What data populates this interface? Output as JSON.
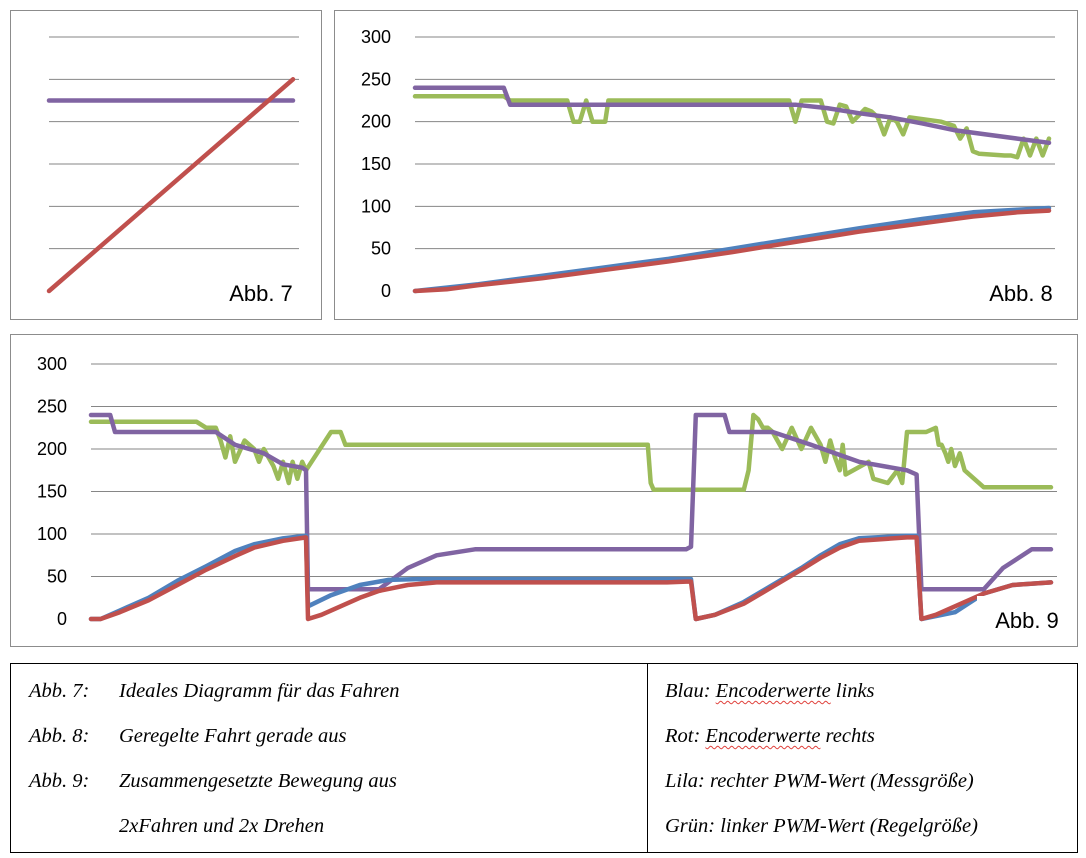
{
  "chart_data": [
    {
      "type": "line",
      "label": "Abb. 7",
      "ylim": [
        0,
        300
      ],
      "grid": true,
      "yticks_visible": false,
      "series": [
        {
          "color": "#8064a2",
          "x": [
            0,
            100
          ],
          "y": [
            225,
            225
          ]
        },
        {
          "color": "#c0504d",
          "x": [
            0,
            100
          ],
          "y": [
            0,
            250
          ]
        }
      ]
    },
    {
      "type": "line",
      "label": "Abb. 8",
      "ylim": [
        0,
        300
      ],
      "yticks": [
        "300",
        "250",
        "200",
        "150",
        "100",
        "50",
        "0"
      ],
      "grid": true,
      "series": [
        {
          "color": "#9bbb59",
          "x": [
            0,
            14,
            15,
            24,
            25,
            26,
            27,
            28,
            29,
            30,
            30.5,
            31,
            34,
            35,
            58,
            59,
            60,
            61,
            63,
            64,
            65,
            66,
            67,
            68,
            69,
            71,
            72,
            73,
            74,
            75,
            76,
            77,
            78,
            83,
            85,
            86,
            87,
            88,
            89,
            93,
            94,
            95,
            96,
            97,
            98,
            99,
            100
          ],
          "y": [
            230,
            230,
            225,
            225,
            200,
            200,
            225,
            200,
            200,
            200,
            225,
            225,
            225,
            225,
            225,
            225,
            200,
            225,
            225,
            225,
            200,
            198,
            220,
            218,
            200,
            215,
            212,
            205,
            185,
            205,
            200,
            185,
            205,
            200,
            195,
            180,
            192,
            165,
            162,
            160,
            160,
            158,
            180,
            160,
            180,
            160,
            180
          ]
        },
        {
          "color": "#8064a2",
          "x": [
            0,
            14,
            15,
            40,
            50,
            60,
            65,
            70,
            75,
            80,
            85,
            90,
            95,
            100
          ],
          "y": [
            240,
            240,
            220,
            220,
            220,
            220,
            216,
            210,
            205,
            198,
            190,
            185,
            180,
            175
          ]
        },
        {
          "color": "#4f81bd",
          "x": [
            0,
            10,
            20,
            30,
            40,
            50,
            60,
            70,
            80,
            88,
            95,
            100
          ],
          "y": [
            0,
            8,
            18,
            28,
            38,
            50,
            62,
            74,
            85,
            93,
            96,
            98
          ]
        },
        {
          "color": "#c0504d",
          "x": [
            0,
            5,
            10,
            20,
            30,
            40,
            50,
            60,
            70,
            80,
            88,
            95,
            100
          ],
          "y": [
            0,
            2,
            7,
            15,
            25,
            35,
            46,
            58,
            70,
            80,
            88,
            93,
            95
          ]
        }
      ]
    },
    {
      "type": "line",
      "label": "Abb. 9",
      "ylim": [
        0,
        300
      ],
      "yticks": [
        "300",
        "250",
        "200",
        "150",
        "100",
        "50",
        "0"
      ],
      "grid": true,
      "series": [
        {
          "color": "#9bbb59",
          "x": [
            0,
            11,
            12,
            13,
            13.5,
            14,
            14.5,
            15,
            16,
            17,
            17.5,
            18,
            18.5,
            19,
            19.5,
            20,
            20.6,
            21,
            21.5,
            22,
            22.4,
            25,
            26,
            26.5,
            27,
            58,
            58.3,
            58.6,
            62,
            63,
            63.5,
            64,
            64.5,
            65,
            66,
            67,
            68,
            68.5,
            69,
            69.5,
            70,
            70.5,
            71,
            72,
            73,
            74,
            75,
            76,
            76.5,
            77,
            77.5,
            78,
            78.3,
            78.6,
            81,
            81.5,
            83,
            84,
            84.5,
            85,
            86,
            87,
            88,
            88.3,
            88.6,
            89,
            89.3,
            89.6,
            90,
            90.5,
            91,
            93,
            100
          ],
          "y": [
            232,
            232,
            225,
            225,
            210,
            190,
            215,
            185,
            210,
            200,
            185,
            200,
            190,
            180,
            165,
            185,
            160,
            185,
            165,
            185,
            175,
            220,
            220,
            205,
            205,
            205,
            160,
            152,
            152,
            152,
            152,
            152,
            152,
            152,
            152,
            152,
            152,
            175,
            240,
            235,
            225,
            225,
            220,
            200,
            225,
            200,
            225,
            205,
            185,
            210,
            190,
            175,
            205,
            170,
            185,
            165,
            160,
            175,
            160,
            220,
            220,
            220,
            225,
            205,
            205,
            195,
            185,
            200,
            180,
            195,
            175,
            155,
            155
          ]
        },
        {
          "color": "#8064a2",
          "x": [
            0,
            2,
            2.5,
            13,
            15,
            18,
            20,
            22,
            22.4,
            22.6,
            30,
            33,
            36,
            40,
            60,
            62,
            62.5,
            63,
            66,
            66.5,
            71,
            75,
            80,
            85,
            86,
            86.5,
            93,
            95,
            98,
            100
          ],
          "y": [
            240,
            240,
            220,
            220,
            205,
            195,
            182,
            178,
            175,
            35,
            35,
            60,
            75,
            82,
            82,
            82,
            85,
            240,
            240,
            220,
            220,
            205,
            185,
            175,
            170,
            35,
            35,
            60,
            82,
            82
          ]
        },
        {
          "color": "#4f81bd",
          "x": [
            0,
            1,
            3,
            6,
            9,
            12,
            15,
            17,
            20,
            22.4,
            22.6,
            25,
            28,
            31,
            34,
            40,
            60,
            62,
            62.5,
            63,
            65,
            68,
            71,
            74,
            76,
            78,
            80,
            85,
            86,
            86.5,
            90,
            93,
            96,
            100
          ],
          "y": [
            0,
            0,
            10,
            25,
            45,
            62,
            80,
            88,
            95,
            98,
            15,
            28,
            40,
            46,
            47,
            47,
            47,
            47,
            47,
            0,
            5,
            20,
            40,
            60,
            75,
            88,
            95,
            98,
            98,
            0,
            8,
            30,
            40,
            43
          ]
        },
        {
          "color": "#c0504d",
          "x": [
            0,
            1,
            3,
            6,
            9,
            12,
            15,
            17,
            20,
            22.4,
            22.6,
            24,
            26,
            28,
            30,
            33,
            36,
            40,
            60,
            62,
            62.5,
            63,
            65,
            68,
            71,
            74,
            76,
            78,
            80,
            85,
            86,
            86.5,
            88,
            90,
            93,
            96,
            100
          ],
          "y": [
            0,
            0,
            8,
            22,
            40,
            58,
            74,
            84,
            92,
            96,
            0,
            5,
            15,
            25,
            33,
            40,
            43,
            43,
            43,
            44,
            44,
            0,
            5,
            18,
            38,
            58,
            72,
            84,
            92,
            96,
            96,
            0,
            5,
            15,
            30,
            40,
            43
          ]
        }
      ]
    }
  ],
  "labels": {
    "abb7": "Abb. 7",
    "abb8": "Abb. 8",
    "abb9": "Abb. 9"
  },
  "caption": {
    "left": [
      {
        "key": "Abb. 7:",
        "text": "Ideales Diagramm für das Fahren"
      },
      {
        "key": "Abb. 8:",
        "text": "Geregelte Fahrt gerade aus"
      },
      {
        "key": "Abb. 9:",
        "text": "Zusammengesetzte Bewegung aus"
      },
      {
        "key": "",
        "text": "2xFahren und 2x Drehen"
      }
    ],
    "right": [
      {
        "prefix": "Blau: ",
        "underlined": "Encoderwerte",
        "suffix": " links"
      },
      {
        "prefix": "Rot: ",
        "underlined": "Encoderwerte",
        "suffix": " rechts"
      },
      {
        "prefix": "Lila: rechter PWM-Wert (Messgröße)",
        "underlined": "",
        "suffix": ""
      },
      {
        "prefix": "Grün: linker PWM-Wert (Regelgröße)",
        "underlined": "",
        "suffix": ""
      }
    ]
  }
}
